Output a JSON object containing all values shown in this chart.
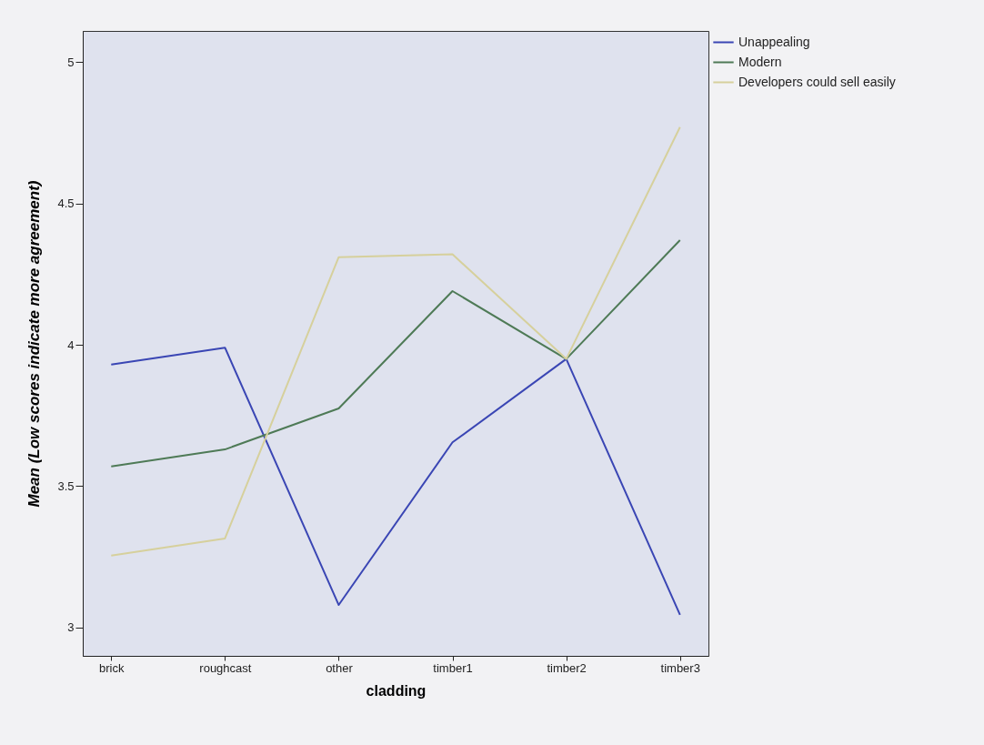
{
  "chart_data": {
    "type": "line",
    "xlabel": "cladding",
    "ylabel": "Mean (Low scores indicate more agreement)",
    "categories": [
      "brick",
      "roughcast",
      "other",
      "timber1",
      "timber2",
      "timber3"
    ],
    "series": [
      {
        "name": "Unappealing",
        "color": "#3a46b4",
        "values": [
          3.93,
          3.99,
          3.08,
          3.655,
          3.95,
          3.045
        ]
      },
      {
        "name": "Modern",
        "color": "#4e7a56",
        "values": [
          3.57,
          3.63,
          3.775,
          4.19,
          3.95,
          4.37
        ]
      },
      {
        "name": "Developers could sell easily",
        "color": "#d6d09c",
        "values": [
          3.255,
          3.315,
          4.31,
          4.32,
          3.95,
          4.77
        ]
      }
    ],
    "ylim": [
      2.9,
      5.11
    ],
    "yticks": [
      3,
      3.5,
      4,
      4.5,
      5
    ],
    "grid": false,
    "legend": "top right",
    "marker": "none",
    "line_style": "solid"
  }
}
